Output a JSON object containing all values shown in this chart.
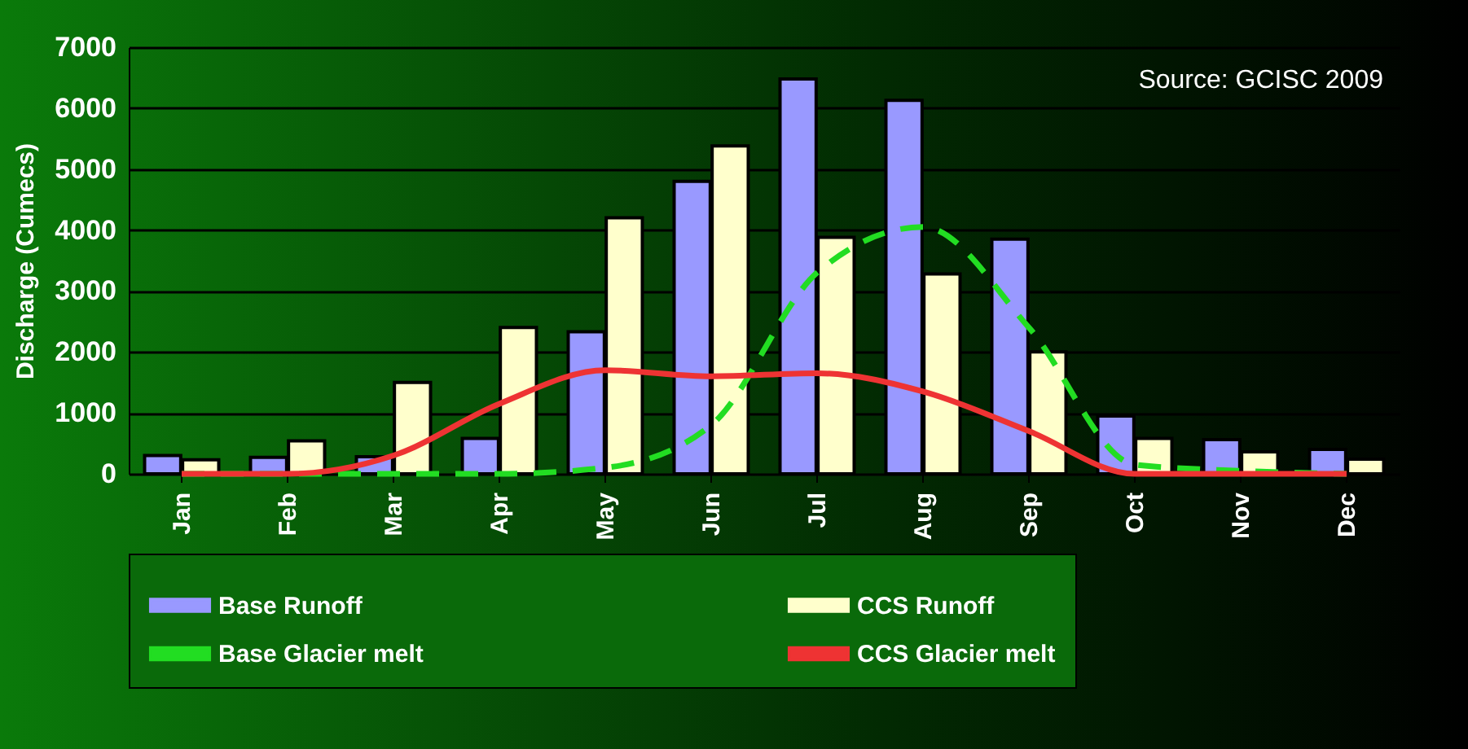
{
  "chart_data": {
    "type": "bar",
    "ylabel": "Discharge (Cumecs)",
    "annotations": [
      "Source: GCISC 2009"
    ],
    "categories": [
      "Jan",
      "Feb",
      "Mar",
      "Apr",
      "May",
      "Jun",
      "Jul",
      "Aug",
      "Sep",
      "Oct",
      "Nov",
      "Dec"
    ],
    "series": [
      {
        "name": "Base Runoff",
        "color": "#9999ff",
        "values": [
          300,
          270,
          280,
          580,
          2330,
          4800,
          6480,
          6130,
          3850,
          950,
          560,
          400
        ]
      },
      {
        "name": "CCS Runoff",
        "color": "#ffffcc",
        "values": [
          230,
          540,
          1500,
          2400,
          4200,
          5380,
          3880,
          3280,
          2000,
          580,
          360,
          240
        ]
      },
      {
        "name": "Base Glacier melt",
        "type": "line",
        "color": "#22dd22",
        "line_style": "dashed",
        "values": [
          0,
          0,
          0,
          0,
          100,
          800,
          3300,
          4050,
          2400,
          150,
          50,
          0
        ]
      },
      {
        "name": "CCS Glacier melt",
        "type": "line",
        "color": "#ee3333",
        "line_style": "solid",
        "values": [
          0,
          0,
          300,
          1150,
          1700,
          1600,
          1650,
          1350,
          700,
          0,
          0,
          0
        ]
      }
    ],
    "ylim": [
      0,
      7000
    ],
    "yticks": [
      0,
      1000,
      2000,
      3000,
      4000,
      5000,
      6000,
      7000
    ],
    "grid": "y",
    "legend": "bottom",
    "marker": "none"
  }
}
